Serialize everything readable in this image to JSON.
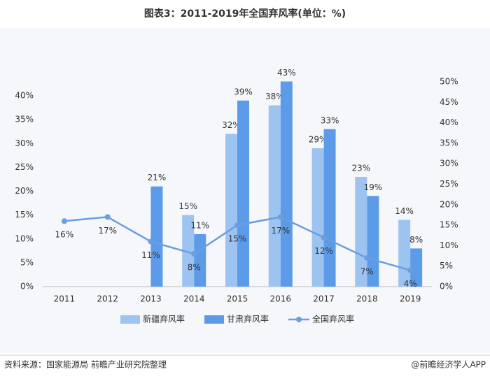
{
  "chart_data": {
    "type": "bar",
    "title": "图表3：2011-2019年全国弃风率(单位：%)",
    "categories": [
      "2011",
      "2012",
      "2013",
      "2014",
      "2015",
      "2016",
      "2017",
      "2018",
      "2019"
    ],
    "series": [
      {
        "name": "新疆弃风率",
        "type": "bar",
        "color": "#9dc3f0",
        "values": [
          null,
          null,
          null,
          15,
          32,
          38,
          29,
          23,
          14
        ],
        "value_labels": [
          null,
          null,
          null,
          "15%",
          "32%",
          "38%",
          "29%",
          "23%",
          "14%"
        ]
      },
      {
        "name": "甘肃弃风率",
        "type": "bar",
        "color": "#5b9be8",
        "values": [
          null,
          null,
          21,
          11,
          39,
          43,
          33,
          19,
          8
        ],
        "value_labels": [
          null,
          null,
          "21%",
          "11%",
          "39%",
          "43%",
          "33%",
          "19%",
          "8%"
        ]
      },
      {
        "name": "全国弃风率",
        "type": "line",
        "axis": "y2",
        "color": "#6a9ee0",
        "values": [
          16,
          17,
          11,
          8,
          15,
          17,
          12,
          7,
          4
        ],
        "value_labels": [
          "16%",
          "17%",
          "11%",
          "8%",
          "15%",
          "17%",
          "12%",
          "7%",
          "4%"
        ]
      }
    ],
    "ylim": [
      0,
      40
    ],
    "yticks": [
      {
        "value": 0,
        "label": "0%"
      },
      {
        "value": 5,
        "label": "5%"
      },
      {
        "value": 10,
        "label": "10%"
      },
      {
        "value": 15,
        "label": "15%"
      },
      {
        "value": 20,
        "label": "20%"
      },
      {
        "value": 25,
        "label": "25%"
      },
      {
        "value": 30,
        "label": "30%"
      },
      {
        "value": 35,
        "label": "35%"
      },
      {
        "value": 40,
        "label": "40%"
      }
    ],
    "y2lim": [
      0,
      50
    ],
    "y2ticks": [
      {
        "value": 0,
        "label": "0%"
      },
      {
        "value": 5,
        "label": "5%"
      },
      {
        "value": 10,
        "label": "10%"
      },
      {
        "value": 15,
        "label": "15%"
      },
      {
        "value": 20,
        "label": "20%"
      },
      {
        "value": 25,
        "label": "25%"
      },
      {
        "value": 30,
        "label": "30%"
      },
      {
        "value": 35,
        "label": "35%"
      },
      {
        "value": 40,
        "label": "40%"
      },
      {
        "value": 45,
        "label": "45%"
      },
      {
        "value": 50,
        "label": "50%"
      }
    ],
    "legend": "bottom"
  },
  "footer": {
    "source": "资料来源：国家能源局 前瞻产业研究院整理",
    "credit": "@前瞻经济学人APP"
  }
}
